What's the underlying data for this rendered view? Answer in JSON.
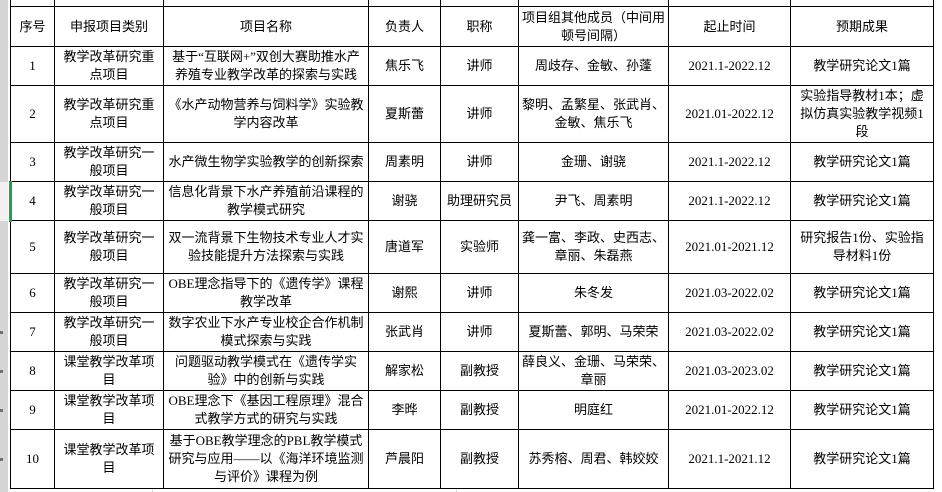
{
  "table": {
    "headers": [
      "序号",
      "申报项目类别",
      "项目名称",
      "负责人",
      "职称",
      "项目组其他成员（中间用顿号间隔）",
      "起止时间",
      "预期成果"
    ],
    "rows": [
      {
        "no": "1",
        "category": "教学改革研究重点项目",
        "name": "基于“互联网+”双创大赛助推水产养殖专业教学改革的探索与实践",
        "leader": "焦乐飞",
        "title": "讲师",
        "members": "周歧存、金敏、孙蓬",
        "period": "2021.1-2022.12",
        "outcome": "教学研究论文1篇"
      },
      {
        "no": "2",
        "category": "教学改革研究重点项目",
        "name": "《水产动物营养与饲料学》实验教学内容改革",
        "leader": "夏斯蕾",
        "title": "讲师",
        "members": "黎明、孟繁星、张武肖、金敏、焦乐飞",
        "period": "2021.01-2022.12",
        "outcome": "实验指导教材1本；虚拟仿真实验教学视频1段"
      },
      {
        "no": "3",
        "category": "教学改革研究一般项目",
        "name": "水产微生物学实验教学的创新探索",
        "leader": "周素明",
        "title": "讲师",
        "members": "金珊、谢骁",
        "period": "2021.1-2022.12",
        "outcome": "教学研究论文1篇"
      },
      {
        "no": "4",
        "category": "教学改革研究一般项目",
        "name": "信息化背景下水产养殖前沿课程的教学模式研究",
        "leader": "谢骁",
        "title": "助理研究员",
        "members": "尹飞、周素明",
        "period": "2021.1-2022.12",
        "outcome": "教学研究论文1篇"
      },
      {
        "no": "5",
        "category": "教学改革研究一般项目",
        "name": "双一流背景下生物技术专业人才实验技能提升方法探索与实践",
        "leader": "唐道军",
        "title": "实验师",
        "members": "龚一富、李政、史西志、章丽、朱磊燕",
        "period": "2021.01-2021.12",
        "outcome": "研究报告1份、实验指导材料1份"
      },
      {
        "no": "6",
        "category": "教学改革研究一般项目",
        "name": "OBE理念指导下的《遗传学》课程教学改革",
        "leader": "谢熙",
        "title": "讲师",
        "members": "朱冬发",
        "period": "2021.03-2022.02",
        "outcome": "教学研究论文1篇"
      },
      {
        "no": "7",
        "category": "教学改革研究一般项目",
        "name": "数字农业下水产专业校企合作机制模式探索与实践",
        "leader": "张武肖",
        "title": "讲师",
        "members": "夏斯蕾、郭明、马荣荣",
        "period": "2021.03-2022.02",
        "outcome": "教学研究论文1篇"
      },
      {
        "no": "8",
        "category": "课堂教学改革项目",
        "name": "问题驱动教学模式在《遗传学实验》中的创新与实践",
        "leader": "解家松",
        "title": "副教授",
        "members": "薛良义、金珊、马荣荣、章丽",
        "period": "2021.03-2023.02",
        "outcome": "教学研究论文1篇"
      },
      {
        "no": "9",
        "category": "课堂教学改革项目",
        "name": "OBE理念下《基因工程原理》混合式教学方式的研究与实践",
        "leader": "李晔",
        "title": "副教授",
        "members": "明庭红",
        "period": "2021.01-2022.12",
        "outcome": "教学研究论文1篇"
      },
      {
        "no": "10",
        "category": "课堂教学改革项目",
        "name": "基于OBE教学理念的PBL教学模式研究与应用——以《海洋环境监测与评价》课程为例",
        "leader": "芦晨阳",
        "title": "副教授",
        "members": "苏秀榕、周君、韩姣姣",
        "period": "2021.1-2021.12",
        "outcome": "教学研究论文1篇"
      }
    ]
  },
  "selection": {
    "selected_row_no": "4"
  },
  "colors": {
    "selection_green": "#21a050",
    "row_band_gray": "#d5d5d5",
    "grid_black": "#000000",
    "sheet_gridline_gray": "#d9d9d9"
  }
}
